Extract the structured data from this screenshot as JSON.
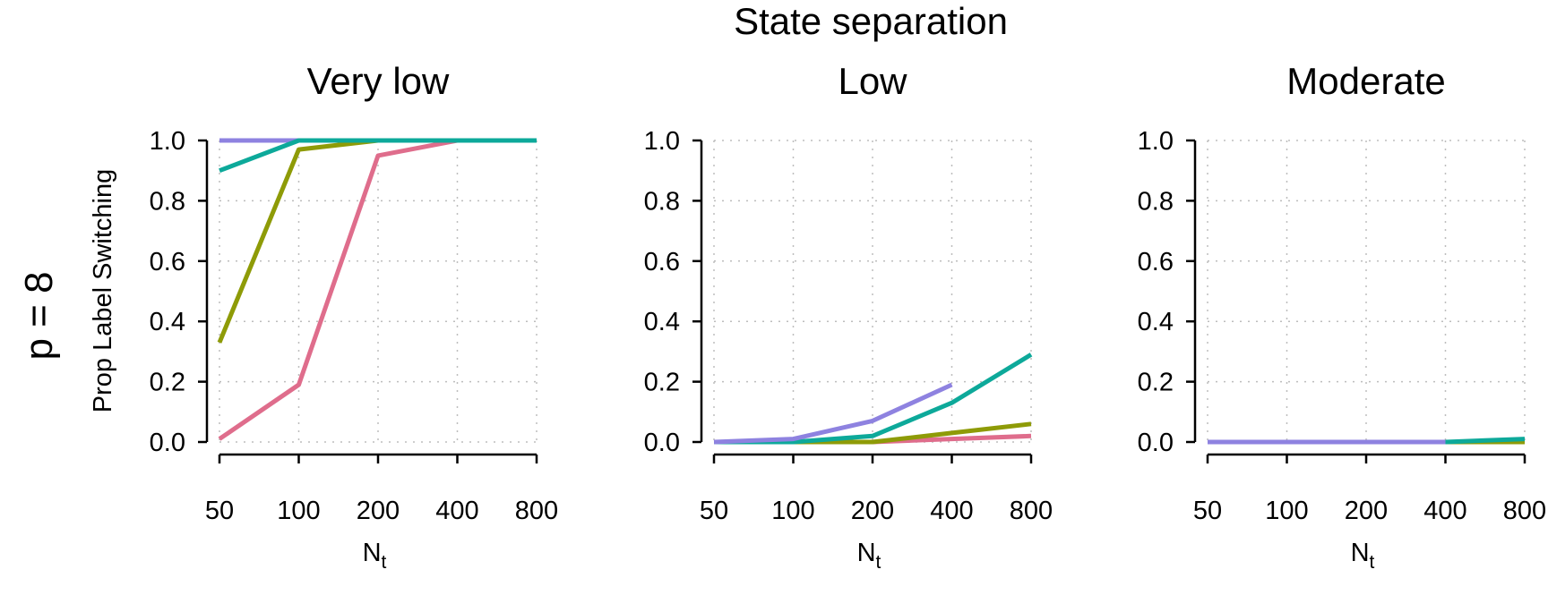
{
  "figure": {
    "title": "State separation",
    "row_label": "p = 8",
    "ylabel": "Prop Label Switching",
    "xlabel_main": "N",
    "xlabel_sub": "t"
  },
  "colors": {
    "pink": "#DF6D8C",
    "olive": "#8E9B07",
    "teal": "#0DA99A",
    "purple": "#8E82E0",
    "grid": "#BDBDBD",
    "axis": "#000000"
  },
  "chart_data": [
    {
      "type": "line",
      "title": "Very low",
      "xscale": "log",
      "x": [
        50,
        100,
        200,
        400,
        800
      ],
      "xticks": [
        "50",
        "100",
        "200",
        "400",
        "800"
      ],
      "ylim": [
        0,
        1
      ],
      "yticks": [
        "0.0",
        "0.2",
        "0.4",
        "0.6",
        "0.8",
        "1.0"
      ],
      "grid": true,
      "series": [
        {
          "color": "pink",
          "values": [
            0.01,
            0.19,
            0.95,
            1.0,
            1.0
          ]
        },
        {
          "color": "olive",
          "values": [
            0.33,
            0.97,
            1.0,
            1.0,
            1.0
          ]
        },
        {
          "color": "purple",
          "values": [
            1.0,
            1.0,
            1.0,
            1.0,
            null
          ]
        },
        {
          "color": "teal",
          "values": [
            0.9,
            1.0,
            1.0,
            1.0,
            1.0
          ]
        }
      ]
    },
    {
      "type": "line",
      "title": "Low",
      "xscale": "log",
      "x": [
        50,
        100,
        200,
        400,
        800
      ],
      "xticks": [
        "50",
        "100",
        "200",
        "400",
        "800"
      ],
      "ylim": [
        0,
        1
      ],
      "yticks": [
        "0.0",
        "0.2",
        "0.4",
        "0.6",
        "0.8",
        "1.0"
      ],
      "grid": true,
      "series": [
        {
          "color": "pink",
          "values": [
            0.0,
            0.0,
            0.0,
            0.01,
            0.02
          ]
        },
        {
          "color": "olive",
          "values": [
            0.0,
            0.0,
            0.0,
            0.03,
            0.06
          ]
        },
        {
          "color": "teal",
          "values": [
            0.0,
            0.0,
            0.02,
            0.13,
            0.29
          ]
        },
        {
          "color": "purple",
          "values": [
            0.0,
            0.01,
            0.07,
            0.19,
            null
          ]
        }
      ]
    },
    {
      "type": "line",
      "title": "Moderate",
      "xscale": "log",
      "x": [
        50,
        100,
        200,
        400,
        800
      ],
      "xticks": [
        "50",
        "100",
        "200",
        "400",
        "800"
      ],
      "ylim": [
        0,
        1
      ],
      "yticks": [
        "0.0",
        "0.2",
        "0.4",
        "0.6",
        "0.8",
        "1.0"
      ],
      "grid": true,
      "series": [
        {
          "color": "pink",
          "values": [
            0.0,
            0.0,
            0.0,
            0.0,
            0.0
          ]
        },
        {
          "color": "olive",
          "values": [
            0.0,
            0.0,
            0.0,
            0.0,
            0.0
          ]
        },
        {
          "color": "teal",
          "values": [
            0.0,
            0.0,
            0.0,
            0.0,
            0.01
          ]
        },
        {
          "color": "purple",
          "values": [
            0.0,
            0.0,
            0.0,
            0.0,
            null
          ]
        }
      ]
    }
  ]
}
